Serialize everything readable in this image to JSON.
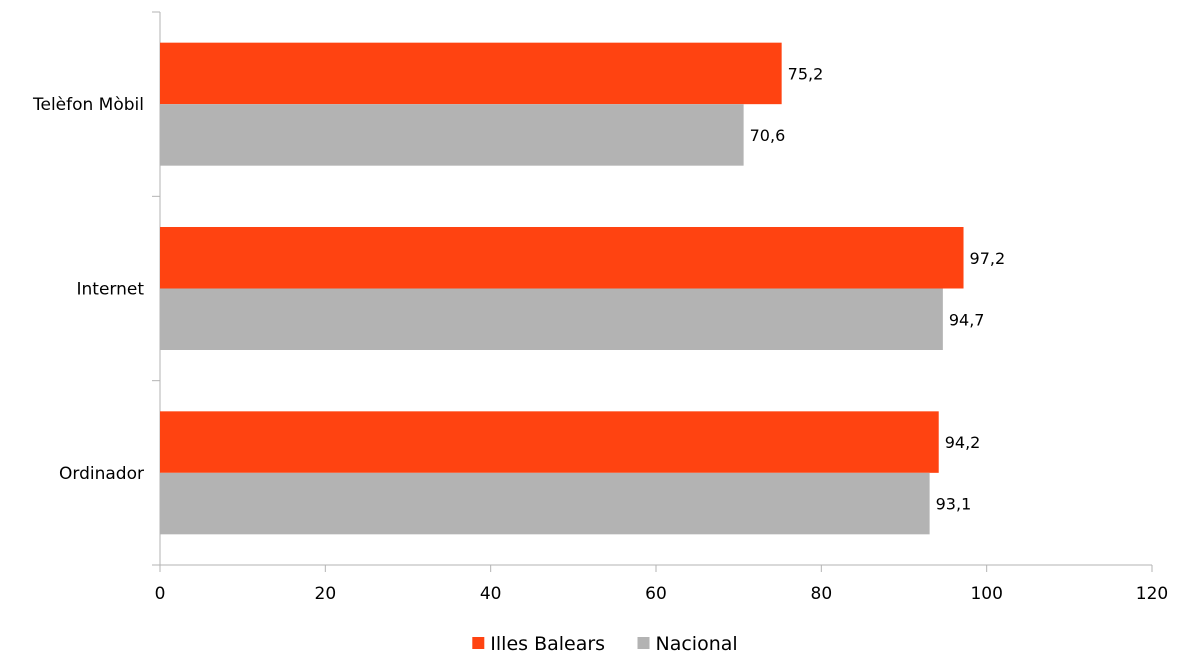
{
  "chart_data": {
    "type": "bar",
    "orientation": "horizontal",
    "categories": [
      "Telèfon Mòbil",
      "Internet",
      "Ordinador"
    ],
    "series": [
      {
        "name": "Illes Balears",
        "color": "#FF4311",
        "values": [
          75.2,
          97.2,
          94.2
        ],
        "labels": [
          "75,2",
          "97,2",
          "94,2"
        ]
      },
      {
        "name": "Nacional",
        "color": "#B3B3B3",
        "values": [
          70.6,
          94.7,
          93.1
        ],
        "labels": [
          "70,6",
          "94,7",
          "93,1"
        ]
      }
    ],
    "xlim": [
      0,
      120
    ],
    "xticks": [
      0,
      20,
      40,
      60,
      80,
      100,
      120
    ],
    "xtick_labels": [
      "0",
      "20",
      "40",
      "60",
      "80",
      "100",
      "120"
    ],
    "grid": false,
    "legend_position": "bottom"
  }
}
